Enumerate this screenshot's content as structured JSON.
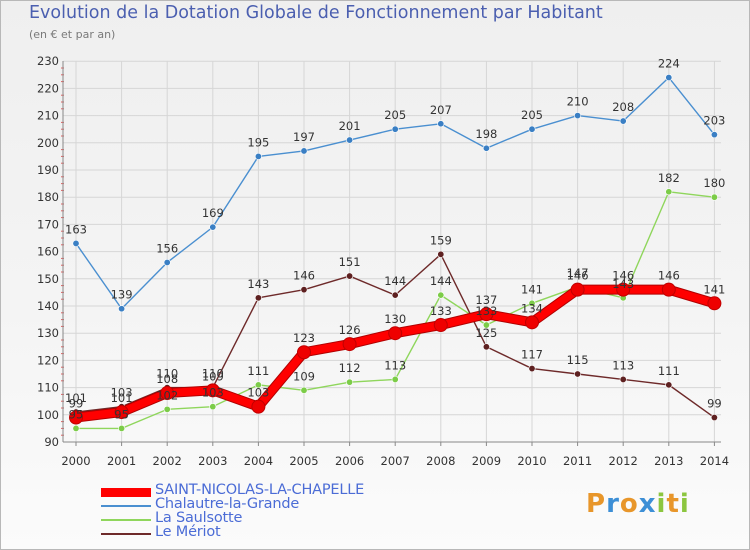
{
  "header": {
    "title": "Evolution de la Dotation Globale de Fonctionnement par Habitant",
    "subtitle": "(en € et par an)"
  },
  "logo": {
    "text": "Proxiti",
    "letters": [
      {
        "ch": "P",
        "color": "#e8962a"
      },
      {
        "ch": "r",
        "color": "#3d8fd6"
      },
      {
        "ch": "o",
        "color": "#e8962a"
      },
      {
        "ch": "x",
        "color": "#3d8fd6"
      },
      {
        "ch": "i",
        "color": "#8cc63f"
      },
      {
        "ch": "t",
        "color": "#e8962a"
      },
      {
        "ch": "i",
        "color": "#8cc63f"
      }
    ]
  },
  "chart_data": {
    "type": "line",
    "title": "Evolution de la Dotation Globale de Fonctionnement par Habitant",
    "subtitle": "(en € et par an)",
    "xlabel": "",
    "ylabel": "",
    "categories": [
      "2000",
      "2001",
      "2002",
      "2003",
      "2004",
      "2005",
      "2006",
      "2007",
      "2008",
      "2009",
      "2010",
      "2011",
      "2012",
      "2013",
      "2014"
    ],
    "ylim": [
      90,
      230
    ],
    "yticks": [
      90,
      100,
      110,
      120,
      130,
      140,
      150,
      160,
      170,
      180,
      190,
      200,
      210,
      220,
      230
    ],
    "grid": true,
    "legend_position": "bottom-left",
    "series": [
      {
        "name": "Chalautre-la-Grande",
        "color": "#4a8fd0",
        "dot_color": "#3a7fc4",
        "values": [
          163,
          139,
          156,
          169,
          195,
          197,
          201,
          205,
          207,
          198,
          205,
          210,
          208,
          224,
          203
        ],
        "labels": [
          "163",
          "139",
          "156",
          "169",
          "195",
          "197",
          "201",
          "205",
          "207",
          "198",
          "205",
          "210",
          "208",
          "224",
          "203"
        ]
      },
      {
        "name": "La Saulsotte",
        "color": "#8fd65c",
        "dot_color": "#7ccc48",
        "values": [
          95,
          95,
          102,
          103,
          111,
          109,
          112,
          113,
          144,
          133,
          141,
          147,
          143,
          182,
          180
        ],
        "labels": [
          "95",
          "95",
          "102",
          "103",
          "111",
          "109",
          "112",
          "113",
          "144",
          "133",
          "141",
          "147",
          "143",
          "182",
          "180"
        ]
      },
      {
        "name": "Le Mériot",
        "color": "#6e2a2a",
        "dot_color": "#5e2020",
        "values": [
          101,
          103,
          110,
          110,
          143,
          146,
          151,
          144,
          159,
          125,
          117,
          115,
          113,
          111,
          99
        ],
        "labels": [
          "101",
          "103",
          "110",
          "110",
          "143",
          "146",
          "151",
          "144",
          "159",
          "125",
          "117",
          "115",
          "113",
          "111",
          "99"
        ]
      },
      {
        "name": "SAINT-NICOLAS-LA-CHAPELLE",
        "color": "#ff0000",
        "dot_color": "#ee0000",
        "values": [
          99,
          101,
          108,
          109,
          103,
          123,
          126,
          130,
          133,
          137,
          134,
          146,
          146,
          146,
          141
        ],
        "labels": [
          "99",
          "101",
          "108",
          "109",
          "103",
          "123",
          "126",
          "130",
          "133",
          "137",
          "134",
          "146",
          "146",
          "146",
          "141"
        ]
      }
    ],
    "legend": [
      {
        "name": "SAINT-NICOLAS-LA-CHAPELLE",
        "color": "#ff0000"
      },
      {
        "name": "Chalautre-la-Grande",
        "color": "#4a8fd0"
      },
      {
        "name": "La Saulsotte",
        "color": "#8fd65c"
      },
      {
        "name": "Le Mériot",
        "color": "#6e2a2a"
      }
    ]
  }
}
